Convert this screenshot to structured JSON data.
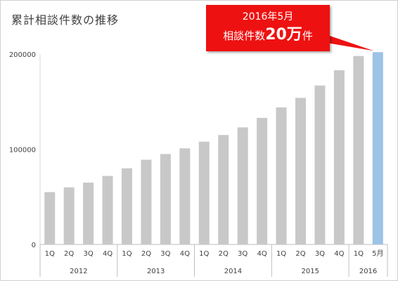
{
  "title": "累計相談件数の推移",
  "callout": {
    "line1": "2016年5月",
    "line2_prefix": "相談件数",
    "line2_number": "20万",
    "line2_suffix": "件",
    "color": "#ee1111"
  },
  "chart_data": {
    "type": "bar",
    "ylim": [
      0,
      200000
    ],
    "yticks": [
      "0",
      "100000",
      "200000"
    ],
    "grid": false,
    "categories": [
      "1Q",
      "2Q",
      "3Q",
      "4Q",
      "1Q",
      "2Q",
      "3Q",
      "4Q",
      "1Q",
      "2Q",
      "3Q",
      "4Q",
      "1Q",
      "2Q",
      "3Q",
      "4Q",
      "1Q",
      "5月"
    ],
    "values": [
      55000,
      60000,
      65000,
      72000,
      80000,
      89000,
      95000,
      101000,
      108000,
      115000,
      123000,
      133000,
      144000,
      154000,
      167000,
      183000,
      198000,
      202000
    ],
    "groups": [
      {
        "label": "2012",
        "count": 4
      },
      {
        "label": "2013",
        "count": 4
      },
      {
        "label": "2014",
        "count": 4
      },
      {
        "label": "2015",
        "count": 4
      },
      {
        "label": "2016",
        "count": 2
      }
    ],
    "bar_color": "#c8c8c8",
    "highlight_index": 17,
    "highlight_color": "#9dc3e6"
  }
}
